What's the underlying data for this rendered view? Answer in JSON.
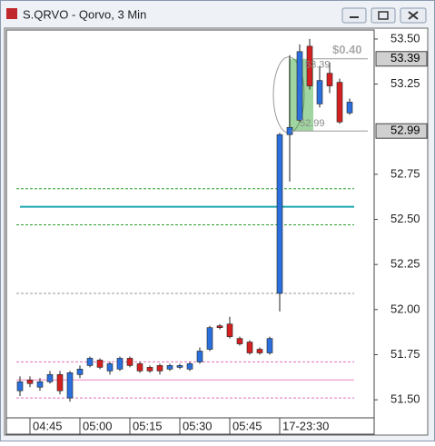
{
  "window_title": "S.QRVO - Qorvo, 3 Min",
  "chart_data": {
    "type": "candlestick",
    "categories": [
      null,
      "04:45",
      null,
      null,
      null,
      null,
      "05:00",
      null,
      null,
      null,
      null,
      "05:15",
      null,
      null,
      null,
      null,
      "05:30",
      null,
      null,
      null,
      null,
      "05:45",
      null,
      null,
      null,
      null,
      "17-23:30",
      null,
      null,
      null,
      null,
      null,
      null,
      null
    ],
    "open": [
      51.55,
      51.61,
      51.57,
      51.6,
      51.64,
      51.51,
      51.64,
      51.69,
      51.72,
      51.66,
      51.67,
      51.73,
      51.7,
      51.68,
      51.69,
      51.67,
      51.68,
      51.67,
      51.71,
      51.78,
      51.91,
      51.92,
      51.84,
      51.82,
      51.78,
      51.76,
      52.09,
      52.97,
      53.05,
      53.46,
      53.14,
      53.31,
      53.26,
      53.09
    ],
    "high": [
      51.63,
      51.63,
      51.62,
      51.66,
      51.66,
      51.66,
      51.69,
      51.74,
      51.73,
      51.71,
      51.74,
      51.74,
      51.71,
      51.69,
      51.7,
      51.7,
      51.7,
      51.71,
      51.79,
      51.91,
      51.92,
      51.96,
      51.85,
      51.83,
      51.79,
      51.85,
      52.98,
      53.41,
      53.47,
      53.5,
      53.35,
      53.37,
      53.28,
      53.17
    ],
    "low": [
      51.52,
      51.57,
      51.55,
      51.59,
      51.53,
      51.49,
      51.62,
      51.68,
      51.67,
      51.64,
      51.66,
      51.68,
      51.65,
      51.65,
      51.64,
      51.66,
      51.67,
      51.66,
      51.7,
      51.77,
      51.89,
      51.84,
      51.8,
      51.75,
      51.75,
      51.75,
      51.99,
      52.71,
      53.04,
      53.22,
      53.12,
      53.2,
      53.03,
      53.08
    ],
    "close": [
      51.6,
      51.59,
      51.6,
      51.64,
      51.55,
      51.65,
      51.67,
      51.73,
      51.68,
      51.7,
      51.73,
      51.69,
      51.66,
      51.66,
      51.66,
      51.69,
      51.69,
      51.7,
      51.77,
      51.9,
      51.9,
      51.85,
      51.81,
      51.76,
      51.76,
      51.84,
      52.97,
      53.01,
      53.43,
      53.24,
      53.27,
      53.24,
      53.04,
      53.15
    ],
    "up_color": "#2a6fdb",
    "down_color": "#d42020",
    "ylim": [
      51.4,
      53.55
    ],
    "yticks": [
      {
        "value": 51.5,
        "label": "51.50"
      },
      {
        "value": 51.75,
        "label": "51.75"
      },
      {
        "value": 52,
        "label": "52.00"
      },
      {
        "value": 52.25,
        "label": "52.25"
      },
      {
        "value": 52.5,
        "label": "52.50"
      },
      {
        "value": 52.75,
        "label": "52.75"
      },
      {
        "value": 53.25,
        "label": "53.25"
      },
      {
        "value": 53.5,
        "label": "53.50"
      }
    ],
    "levels": [
      {
        "value": 52.67,
        "color": "#2ca02c",
        "style": "dashed"
      },
      {
        "value": 52.57,
        "color": "#1aa6b0",
        "style": "solid"
      },
      {
        "value": 52.47,
        "color": "#2ca02c",
        "style": "dashed"
      },
      {
        "value": 52.09,
        "color": "#999999",
        "style": "dashed"
      },
      {
        "value": 51.71,
        "color": "#e070c0",
        "style": "dashed"
      },
      {
        "value": 51.61,
        "color": "#f080c0",
        "style": "solid"
      },
      {
        "value": 51.51,
        "color": "#e070c0",
        "style": "dashed"
      }
    ],
    "price_markers": [
      53.39,
      52.99
    ],
    "measure_label": "$0.40"
  }
}
